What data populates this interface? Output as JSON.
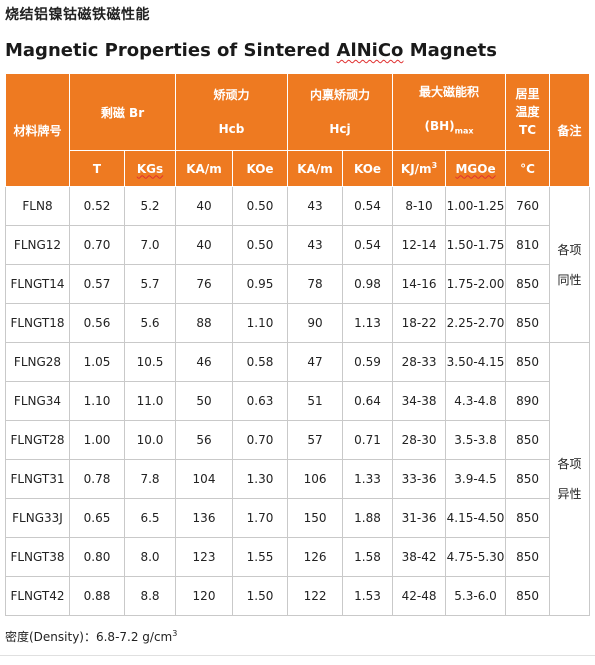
{
  "title_cn": "烧结铝镍钴磁铁磁性能",
  "title_en": {
    "prefix": "Magnetic Properties of Sintered ",
    "alnico": "AlNiCo",
    "suffix": " Magnets"
  },
  "headers": {
    "grade": "材料牌号",
    "br": "剩磁 Br",
    "hcb_cn": "矫顽力",
    "hcb": "Hcb",
    "hcj_cn": "内禀矫顽力",
    "hcj": "Hcj",
    "bh_cn": "最大磁能积",
    "bh": "(BH)",
    "bh_sub": "max",
    "tc_cn1": "居里",
    "tc_cn2": "温度",
    "tc": "TC",
    "remark": "备注"
  },
  "units": {
    "t": "T",
    "kgs": "KGs",
    "kam1": "KA/m",
    "koe1": "KOe",
    "kam2": "KA/m",
    "koe2": "KOe",
    "kjm3": "KJ/m",
    "kjm3_sup": "3",
    "mgoe": "MGOe",
    "degc": "°C"
  },
  "rows": [
    {
      "grade": "FLN8",
      "t": "0.52",
      "kgs": "5.2",
      "hcb_kam": "40",
      "hcb_koe": "0.50",
      "hcj_kam": "43",
      "hcj_koe": "0.54",
      "kj": "8-10",
      "mgoe": "1.00-1.25",
      "tc": "760"
    },
    {
      "grade": "FLNG12",
      "t": "0.70",
      "kgs": "7.0",
      "hcb_kam": "40",
      "hcb_koe": "0.50",
      "hcj_kam": "43",
      "hcj_koe": "0.54",
      "kj": "12-14",
      "mgoe": "1.50-1.75",
      "tc": "810"
    },
    {
      "grade": "FLNGT14",
      "t": "0.57",
      "kgs": "5.7",
      "hcb_kam": "76",
      "hcb_koe": "0.95",
      "hcj_kam": "78",
      "hcj_koe": "0.98",
      "kj": "14-16",
      "mgoe": "1.75-2.00",
      "tc": "850"
    },
    {
      "grade": "FLNGT18",
      "t": "0.56",
      "kgs": "5.6",
      "hcb_kam": "88",
      "hcb_koe": "1.10",
      "hcj_kam": "90",
      "hcj_koe": "1.13",
      "kj": "18-22",
      "mgoe": "2.25-2.70",
      "tc": "850"
    },
    {
      "grade": "FLNG28",
      "t": "1.05",
      "kgs": "10.5",
      "hcb_kam": "46",
      "hcb_koe": "0.58",
      "hcj_kam": "47",
      "hcj_koe": "0.59",
      "kj": "28-33",
      "mgoe": "3.50-4.15",
      "tc": "850"
    },
    {
      "grade": "FLNG34",
      "t": "1.10",
      "kgs": "11.0",
      "hcb_kam": "50",
      "hcb_koe": "0.63",
      "hcj_kam": "51",
      "hcj_koe": "0.64",
      "kj": "34-38",
      "mgoe": "4.3-4.8",
      "tc": "890"
    },
    {
      "grade": "FLNGT28",
      "t": "1.00",
      "kgs": "10.0",
      "hcb_kam": "56",
      "hcb_koe": "0.70",
      "hcj_kam": "57",
      "hcj_koe": "0.71",
      "kj": "28-30",
      "mgoe": "3.5-3.8",
      "tc": "850"
    },
    {
      "grade": "FLNGT31",
      "t": "0.78",
      "kgs": "7.8",
      "hcb_kam": "104",
      "hcb_koe": "1.30",
      "hcj_kam": "106",
      "hcj_koe": "1.33",
      "kj": "33-36",
      "mgoe": "3.9-4.5",
      "tc": "850"
    },
    {
      "grade": "FLNG33J",
      "t": "0.65",
      "kgs": "6.5",
      "hcb_kam": "136",
      "hcb_koe": "1.70",
      "hcj_kam": "150",
      "hcj_koe": "1.88",
      "kj": "31-36",
      "mgoe": "4.15-4.50",
      "tc": "850"
    },
    {
      "grade": "FLNGT38",
      "t": "0.80",
      "kgs": "8.0",
      "hcb_kam": "123",
      "hcb_koe": "1.55",
      "hcj_kam": "126",
      "hcj_koe": "1.58",
      "kj": "38-42",
      "mgoe": "4.75-5.30",
      "tc": "850"
    },
    {
      "grade": "FLNGT42",
      "t": "0.88",
      "kgs": "8.8",
      "hcb_kam": "120",
      "hcb_koe": "1.50",
      "hcj_kam": "122",
      "hcj_koe": "1.53",
      "kj": "42-48",
      "mgoe": "5.3-6.0",
      "tc": "850"
    }
  ],
  "remarks": {
    "group1_line1": "各项",
    "group1_line2": "同性",
    "group2_line1": "各项",
    "group2_line2": "异性"
  },
  "density": {
    "text": "密度(Density)：6.8-7.2 g/cm",
    "sup": "3"
  },
  "colors": {
    "header_bg": "#ee7a21",
    "header_text": "#ffffff",
    "grid": "#c9c9c9",
    "spell_underline": "#e03030"
  }
}
